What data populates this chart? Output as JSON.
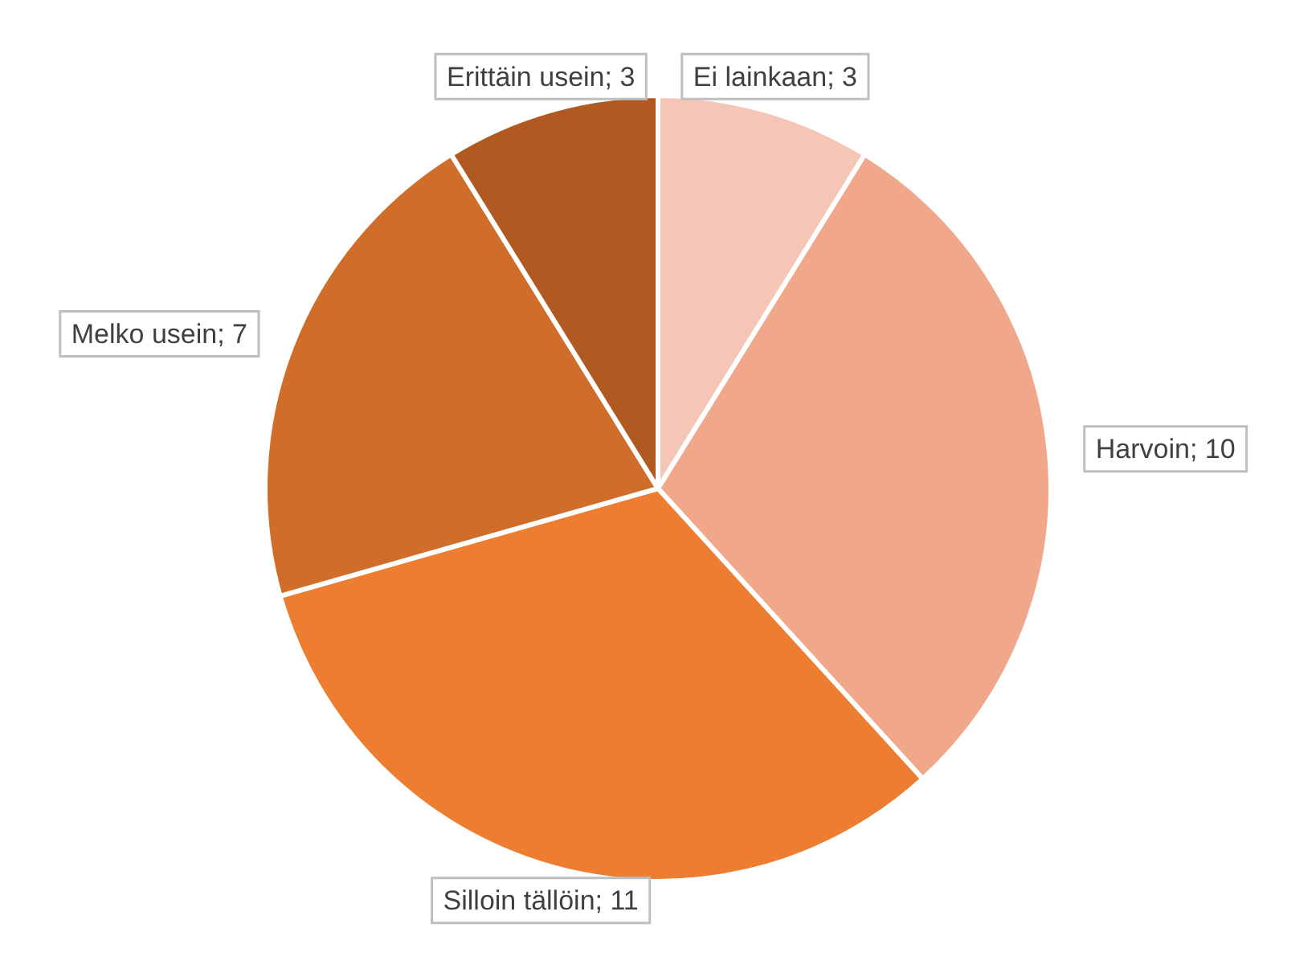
{
  "chart_data": {
    "type": "pie",
    "categories": [
      "Ei lainkaan",
      "Harvoin",
      "Silloin tällöin",
      "Melko usein",
      "Erittäin usein"
    ],
    "values": [
      3,
      10,
      11,
      7,
      3
    ],
    "value_labels": [
      "; 3",
      "; 10",
      "; 11",
      "; 7",
      "; 3"
    ],
    "colors": [
      "#f5c6b5",
      "#f0a78a",
      "#ed7d31",
      "#d06d2a",
      "#b05a22"
    ],
    "legend": false
  }
}
